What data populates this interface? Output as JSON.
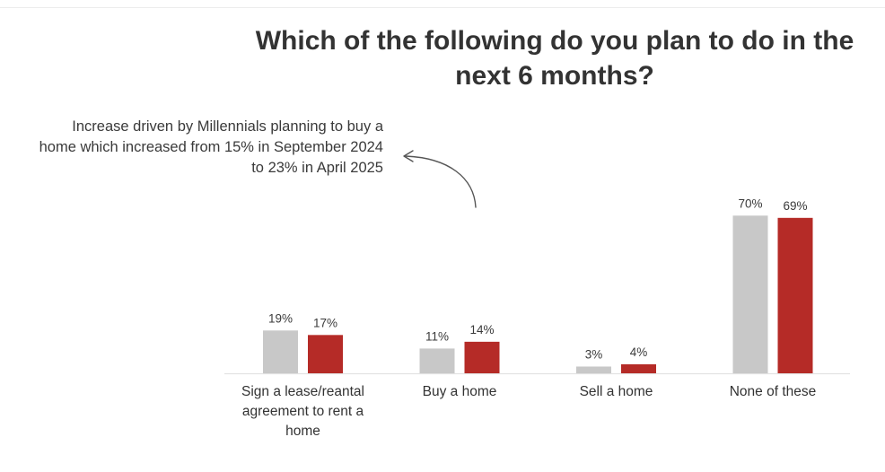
{
  "title_lines": [
    "Which of the following do you plan to do in the",
    "next 6 months?"
  ],
  "annotation_lines": [
    "Increase driven by Millennials planning to buy a",
    "home which increased from 15% in September 2024",
    "to 23% in April 2025"
  ],
  "colors": {
    "series_prior": "#c8c8c8",
    "series_current": "#b52b27",
    "baseline": "#e2e2e2",
    "arrow": "#555555"
  },
  "chart_data": {
    "type": "bar",
    "title": "Which of the following do you plan to do in the next 6 months?",
    "categories": [
      [
        "Sign a lease/reantal",
        "agreement to rent a",
        "home"
      ],
      [
        "Buy a home"
      ],
      [
        "Sell a home"
      ],
      [
        "None of these"
      ]
    ],
    "series": [
      {
        "values": [
          19,
          11,
          3,
          70
        ],
        "labels": [
          "19%",
          "11%",
          "3%",
          "70%"
        ],
        "color": "#c8c8c8"
      },
      {
        "values": [
          17,
          14,
          4,
          69
        ],
        "labels": [
          "17%",
          "14%",
          "4%",
          "69%"
        ],
        "color": "#b52b27"
      }
    ],
    "value_format": "percent",
    "ylim": [
      0,
      100
    ],
    "grid": false,
    "legend": "none",
    "annotation": "Increase driven by Millennials planning to buy a home which increased from 15% in September 2024 to 23% in April 2025"
  }
}
